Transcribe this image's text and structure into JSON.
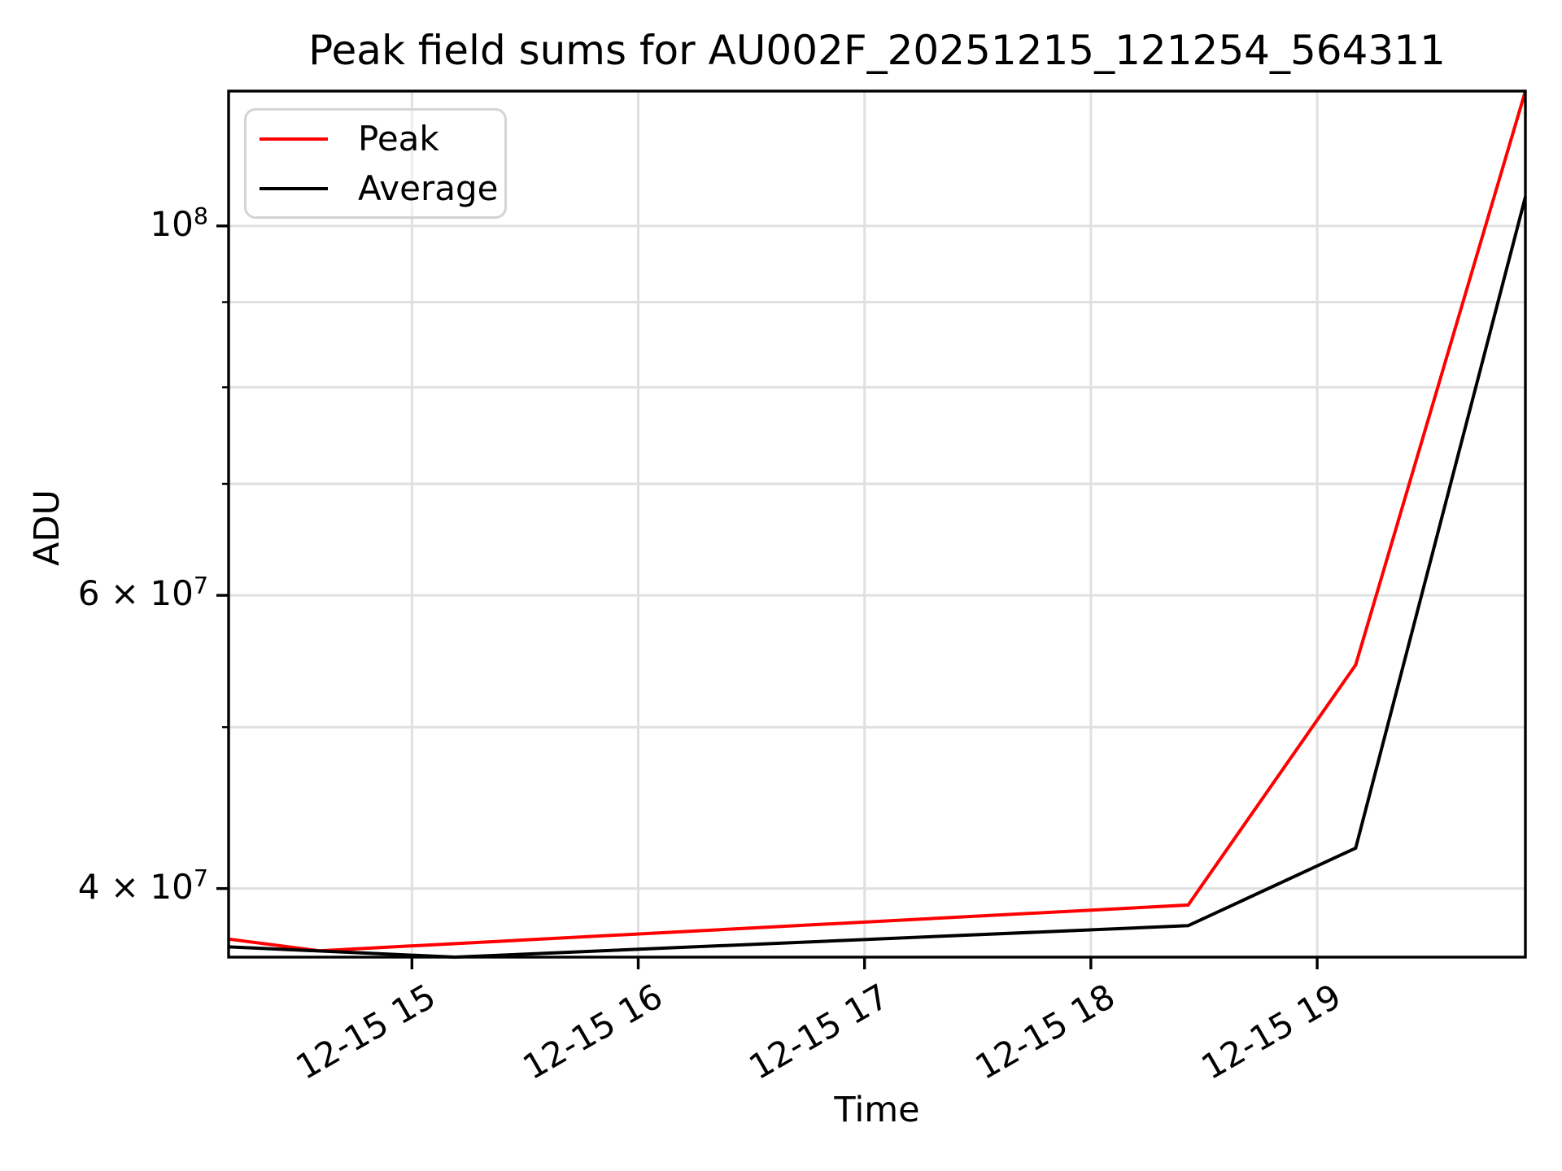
{
  "chart_data": {
    "type": "line",
    "title": "Peak field sums for AU002F_20251215_121254_564311",
    "xlabel": "Time",
    "ylabel": "ADU",
    "yscale": "log",
    "grid": true,
    "legend_position": "upper left",
    "x_unit": "hour of day on 12-15",
    "xlim": [
      14.19,
      19.92
    ],
    "ylim": [
      36380000,
      120500000
    ],
    "x_ticks": [
      15,
      16,
      17,
      18,
      19
    ],
    "x_tick_labels": [
      "12-15 15",
      "12-15 16",
      "12-15 17",
      "12-15 18",
      "12-15 19"
    ],
    "y_grid_values": [
      40000000,
      50000000,
      60000000,
      70000000,
      80000000,
      90000000,
      100000000
    ],
    "y_tick_labels": [
      {
        "value": 100000000,
        "base": "10",
        "exp": "8",
        "kind": "major"
      },
      {
        "value": 60000000,
        "base": "6 × 10",
        "exp": "7",
        "kind": "minor"
      },
      {
        "value": 40000000,
        "base": "4 × 10",
        "exp": "7",
        "kind": "minor"
      }
    ],
    "y_minor_unlabeled": [
      50000000,
      70000000,
      80000000,
      90000000
    ],
    "series": [
      {
        "name": "Peak",
        "color": "#ff0000",
        "x": [
          14.19,
          14.59,
          18.43,
          19.17,
          19.92
        ],
        "y": [
          37300000,
          36700000,
          39100000,
          54500000,
          120500000
        ]
      },
      {
        "name": "Average",
        "color": "#000000",
        "x": [
          14.19,
          15.19,
          18.43,
          19.17,
          19.92
        ],
        "y": [
          36900000,
          36380000,
          38000000,
          42300000,
          104100000
        ]
      }
    ]
  },
  "legend": {
    "entries": [
      {
        "label": "Peak",
        "color": "#ff0000"
      },
      {
        "label": "Average",
        "color": "#000000"
      }
    ]
  },
  "colors": {
    "grid": "#e0e0e0",
    "spine": "#000000",
    "tick": "#000000",
    "background": "#ffffff",
    "peak_line": "#ff0000",
    "average_line": "#000000"
  }
}
